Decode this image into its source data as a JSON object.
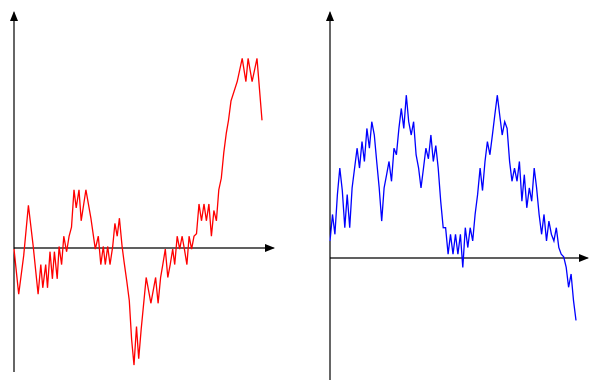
{
  "chart_data": [
    {
      "type": "line",
      "title": "",
      "xlabel": "",
      "ylabel": "",
      "grid": false,
      "legend": "none",
      "color": "#ff0000",
      "xlim": [
        0,
        1
      ],
      "ylim": [
        -1,
        1.84
      ],
      "series": [
        {
          "x": [
            0,
            0.019,
            0.039,
            0.058,
            0.077,
            0.097,
            0.108,
            0.116,
            0.128,
            0.135,
            0.145,
            0.155,
            0.163,
            0.174,
            0.182,
            0.192,
            0.201,
            0.212,
            0.222,
            0.232,
            0.242,
            0.251,
            0.262,
            0.271,
            0.29,
            0.31,
            0.328,
            0.34,
            0.35,
            0.36,
            0.368,
            0.378,
            0.387,
            0.398,
            0.407,
            0.416,
            0.425,
            0.436,
            0.444,
            0.455,
            0.465,
            0.474,
            0.484,
            0.494,
            0.503,
            0.513,
            0.533,
            0.552,
            0.571,
            0.581,
            0.591,
            0.6,
            0.61,
            0.62,
            0.63,
            0.64,
            0.648,
            0.658,
            0.668,
            0.678,
            0.687,
            0.697,
            0.706,
            0.716,
            0.726,
            0.736,
            0.746,
            0.756,
            0.766,
            0.776,
            0.786,
            0.796,
            0.806,
            0.816,
            0.826,
            0.836,
            0.846,
            0.856,
            0.865,
            0.875,
            0.9,
            0.92,
            0.935,
            0.944,
            0.96,
            0.98,
            1.0
          ],
          "y": [
            0.0,
            -0.35,
            -0.05,
            0.34,
            0.03,
            -0.35,
            -0.12,
            -0.3,
            -0.12,
            -0.3,
            -0.02,
            -0.23,
            -0.02,
            -0.23,
            0.02,
            -0.12,
            0.1,
            -0.02,
            0.1,
            0.17,
            0.46,
            0.32,
            0.46,
            0.22,
            0.46,
            0.24,
            0.0,
            0.1,
            -0.12,
            0.02,
            -0.12,
            0.02,
            -0.12,
            0.02,
            0.2,
            0.1,
            0.24,
            0.02,
            -0.1,
            -0.25,
            -0.4,
            -0.7,
            -0.9,
            -0.6,
            -0.85,
            -0.62,
            -0.22,
            -0.42,
            -0.22,
            -0.42,
            -0.22,
            -0.12,
            0.0,
            -0.22,
            -0.12,
            0.0,
            -0.12,
            0.1,
            0.0,
            0.1,
            0.0,
            -0.12,
            0.1,
            0.0,
            0.1,
            0.12,
            0.35,
            0.22,
            0.35,
            0.22,
            0.35,
            0.1,
            0.3,
            0.22,
            0.46,
            0.55,
            0.75,
            0.9,
            1.0,
            1.15,
            1.3,
            1.48,
            1.3,
            1.48,
            1.3,
            1.48,
            1.0
          ]
        }
      ]
    },
    {
      "type": "line",
      "title": "",
      "xlabel": "",
      "ylabel": "",
      "grid": false,
      "legend": "none",
      "color": "#0000ff",
      "xlim": [
        0,
        1
      ],
      "ylim": [
        -0.65,
        1.2
      ],
      "series": [
        {
          "x": [
            0.0,
            0.01,
            0.02,
            0.03,
            0.04,
            0.05,
            0.06,
            0.07,
            0.08,
            0.09,
            0.1,
            0.11,
            0.12,
            0.13,
            0.14,
            0.15,
            0.16,
            0.17,
            0.18,
            0.19,
            0.2,
            0.21,
            0.22,
            0.23,
            0.24,
            0.25,
            0.26,
            0.27,
            0.28,
            0.29,
            0.3,
            0.31,
            0.32,
            0.33,
            0.34,
            0.35,
            0.36,
            0.37,
            0.38,
            0.39,
            0.4,
            0.41,
            0.42,
            0.43,
            0.44,
            0.45,
            0.46,
            0.47,
            0.48,
            0.49,
            0.5,
            0.51,
            0.52,
            0.53,
            0.54,
            0.55,
            0.56,
            0.57,
            0.58,
            0.59,
            0.6,
            0.61,
            0.62,
            0.63,
            0.64,
            0.65,
            0.66,
            0.67,
            0.68,
            0.69,
            0.7,
            0.71,
            0.72,
            0.73,
            0.74,
            0.75,
            0.76,
            0.77,
            0.78,
            0.79,
            0.8,
            0.81,
            0.82,
            0.83,
            0.84,
            0.85,
            0.86,
            0.87,
            0.88,
            0.89,
            0.9,
            0.91,
            0.92,
            0.93,
            0.94,
            0.95,
            0.96,
            0.97,
            0.98,
            0.99,
            1.0
          ],
          "y": [
            0.0,
            0.2,
            0.05,
            0.35,
            0.55,
            0.38,
            0.1,
            0.35,
            0.1,
            0.4,
            0.55,
            0.7,
            0.55,
            0.75,
            0.6,
            0.85,
            0.7,
            0.9,
            0.8,
            0.6,
            0.4,
            0.15,
            0.4,
            0.5,
            0.6,
            0.45,
            0.7,
            0.65,
            0.85,
            1.0,
            0.85,
            1.1,
            0.9,
            0.8,
            0.9,
            0.65,
            0.55,
            0.4,
            0.55,
            0.7,
            0.62,
            0.8,
            0.6,
            0.72,
            0.55,
            0.3,
            0.1,
            0.1,
            -0.1,
            0.05,
            -0.1,
            0.05,
            -0.1,
            0.05,
            -0.2,
            0.1,
            -0.05,
            0.1,
            0.0,
            0.2,
            0.35,
            0.55,
            0.38,
            0.6,
            0.75,
            0.65,
            0.8,
            0.95,
            1.1,
            0.95,
            0.8,
            0.9,
            0.85,
            0.6,
            0.45,
            0.55,
            0.45,
            0.6,
            0.3,
            0.5,
            0.25,
            0.4,
            0.3,
            0.55,
            0.4,
            0.2,
            0.05,
            0.2,
            0.0,
            0.15,
            0.05,
            0.0,
            0.1,
            -0.05,
            -0.1,
            -0.12,
            -0.2,
            -0.35,
            -0.25,
            -0.45,
            -0.6
          ]
        }
      ]
    }
  ]
}
